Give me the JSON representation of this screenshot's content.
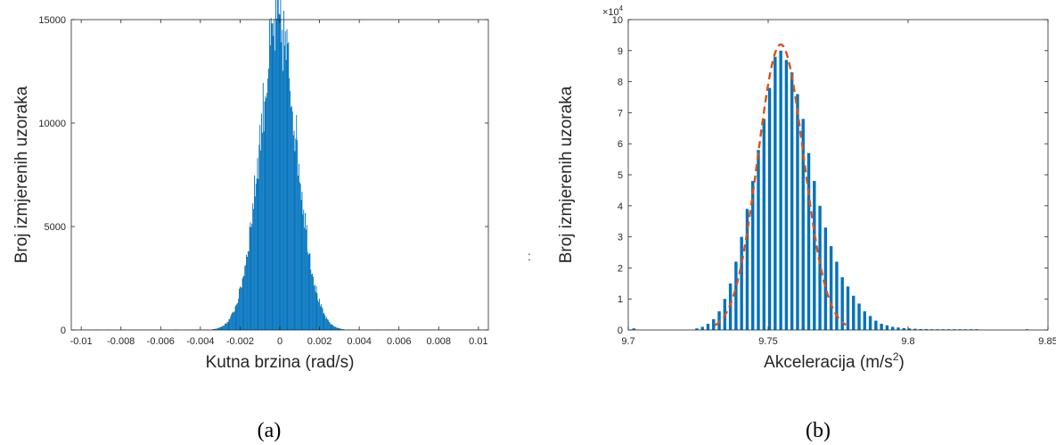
{
  "chart_data": [
    {
      "type": "bar",
      "subplot_label": "(a)",
      "xlabel": "Kutna brzina (rad/s)",
      "ylabel": "Broj izmjerenih uzoraka",
      "xlim": [
        -0.0105,
        0.0105
      ],
      "ylim": [
        0,
        15000
      ],
      "xticks": [
        -0.01,
        -0.008,
        -0.006,
        -0.004,
        -0.002,
        0,
        0.002,
        0.004,
        0.006,
        0.008,
        0.01
      ],
      "xtick_labels": [
        "-0.01",
        "-0.008",
        "-0.006",
        "-0.004",
        "-0.002",
        "0",
        "0.002",
        "0.004",
        "0.006",
        "0.008",
        "0.01"
      ],
      "yticks": [
        0,
        5000,
        10000,
        15000
      ],
      "ytick_labels": [
        "0",
        "5000",
        "10000",
        "15000"
      ],
      "distribution": {
        "mean": -0.0001,
        "std": 0.00095,
        "peak": 14700
      },
      "bar_color": "#0072BD",
      "grid": false
    },
    {
      "type": "bar",
      "subplot_label": "(b)",
      "xlabel": "Akceleracija (m/s",
      "xlabel_sup": "2",
      "xlabel_end": ")",
      "ylabel": "Broj izmjerenih uzoraka",
      "xlim": [
        9.7,
        9.85
      ],
      "ylim": [
        0,
        10
      ],
      "y_multiplier": "×10",
      "y_multiplier_exp": "4",
      "xticks": [
        9.7,
        9.75,
        9.8,
        9.85
      ],
      "xtick_labels": [
        "9.7",
        "9.75",
        "9.8",
        "9.85"
      ],
      "yticks": [
        0,
        1,
        2,
        3,
        4,
        5,
        6,
        7,
        8,
        9,
        10
      ],
      "ytick_labels": [
        "0",
        "1",
        "2",
        "3",
        "4",
        "5",
        "6",
        "7",
        "8",
        "9",
        "10"
      ],
      "bars": {
        "x": [
          9.702,
          9.7245,
          9.7265,
          9.7285,
          9.7305,
          9.7325,
          9.7345,
          9.7365,
          9.7385,
          9.7405,
          9.7425,
          9.7445,
          9.7465,
          9.7485,
          9.7505,
          9.7525,
          9.7545,
          9.7565,
          9.7585,
          9.7605,
          9.7625,
          9.7645,
          9.7665,
          9.7685,
          9.7705,
          9.7725,
          9.7745,
          9.7765,
          9.7785,
          9.7805,
          9.7825,
          9.7845,
          9.7865,
          9.7885,
          9.7905,
          9.7925,
          9.7945,
          9.7965,
          9.7985,
          9.8005,
          9.8025,
          9.8045,
          9.8065,
          9.8085,
          9.8105,
          9.8125,
          9.8145,
          9.8165,
          9.8185,
          9.8205,
          9.8225,
          9.8245,
          9.8425
        ],
        "values": [
          0.05,
          0.05,
          0.1,
          0.2,
          0.35,
          0.6,
          1.0,
          1.5,
          2.2,
          3.0,
          3.9,
          4.8,
          5.8,
          6.8,
          7.8,
          8.8,
          9.0,
          8.7,
          8.3,
          7.6,
          6.8,
          5.7,
          4.8,
          4.0,
          3.3,
          2.7,
          2.2,
          1.7,
          1.4,
          1.1,
          0.85,
          0.6,
          0.45,
          0.3,
          0.2,
          0.15,
          0.1,
          0.08,
          0.06,
          0.05,
          0.04,
          0.03,
          0.03,
          0.02,
          0.02,
          0.02,
          0.02,
          0.02,
          0.02,
          0.02,
          0.02,
          0.02,
          0.02
        ]
      },
      "fit": {
        "type": "gaussian",
        "mean": 9.7545,
        "std": 0.0082,
        "peak": 9.2,
        "x_range": [
          9.731,
          9.778
        ]
      },
      "bar_color": "#0072BD",
      "fit_color": "#D95319",
      "grid": false
    }
  ],
  "separator_text": ":"
}
